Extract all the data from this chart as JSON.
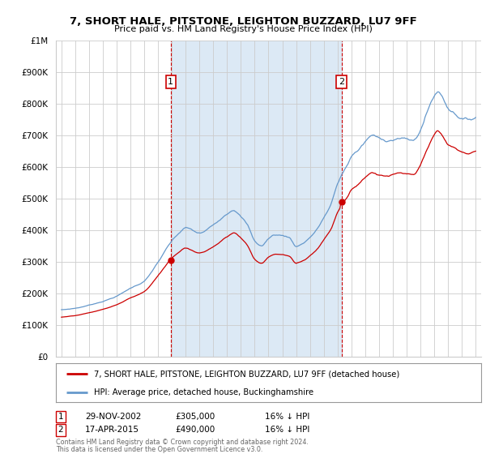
{
  "title": "7, SHORT HALE, PITSTONE, LEIGHTON BUZZARD, LU7 9FF",
  "subtitle": "Price paid vs. HM Land Registry's House Price Index (HPI)",
  "legend_label_red": "7, SHORT HALE, PITSTONE, LEIGHTON BUZZARD, LU7 9FF (detached house)",
  "legend_label_blue": "HPI: Average price, detached house, Buckinghamshire",
  "annotation1_label": "1",
  "annotation1_date": "29-NOV-2002",
  "annotation1_price": "£305,000",
  "annotation1_hpi": "16% ↓ HPI",
  "annotation1_year": 2002.92,
  "annotation1_value": 305000,
  "annotation2_label": "2",
  "annotation2_date": "17-APR-2015",
  "annotation2_price": "£490,000",
  "annotation2_hpi": "16% ↓ HPI",
  "annotation2_year": 2015.29,
  "annotation2_value": 490000,
  "footer1": "Contains HM Land Registry data © Crown copyright and database right 2024.",
  "footer2": "This data is licensed under the Open Government Licence v3.0.",
  "ylim": [
    0,
    1000000
  ],
  "yticks": [
    0,
    100000,
    200000,
    300000,
    400000,
    500000,
    600000,
    700000,
    800000,
    900000,
    1000000
  ],
  "ytick_labels": [
    "£0",
    "£100K",
    "£200K",
    "£300K",
    "£400K",
    "£500K",
    "£600K",
    "£700K",
    "£800K",
    "£900K",
    "£1M"
  ],
  "red_color": "#cc0000",
  "blue_color": "#6699cc",
  "fill_color": "#dce9f5",
  "vline_color": "#cc0000",
  "background_color": "#ffffff",
  "grid_color": "#cccccc",
  "sale1_year": 2002.92,
  "sale1_price": 305000,
  "sale2_year": 2015.29,
  "sale2_price": 490000
}
